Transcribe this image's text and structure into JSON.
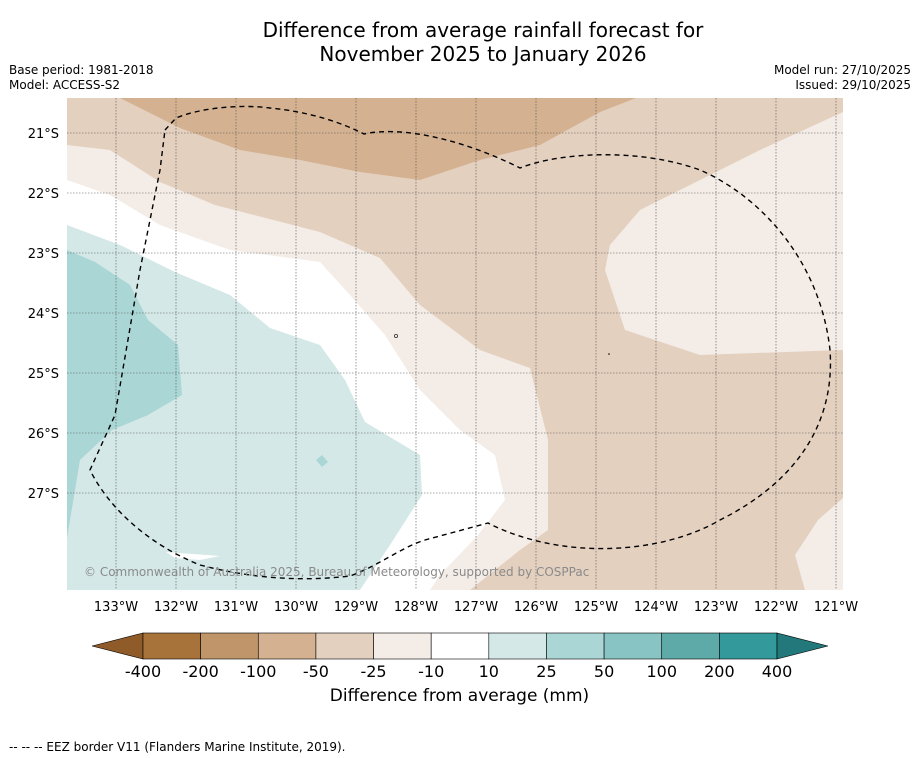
{
  "title": {
    "line1": "Difference from average rainfall forecast for",
    "line2": "November 2025 to January 2026"
  },
  "meta_left": {
    "base_period": "Base period: 1981-2018",
    "model": "Model: ACCESS-S2"
  },
  "meta_right": {
    "model_run": "Model run: 27/10/2025",
    "issued": "Issued: 29/10/2025"
  },
  "map": {
    "lat_labels": [
      "21°S",
      "22°S",
      "23°S",
      "24°S",
      "25°S",
      "26°S",
      "27°S"
    ],
    "lon_labels": [
      "133°W",
      "132°W",
      "131°W",
      "130°W",
      "129°W",
      "128°W",
      "127°W",
      "126°W",
      "125°W",
      "124°W",
      "123°W",
      "122°W",
      "121°W"
    ],
    "copyright": "© Commonwealth of Australia 2025, Bureau of Meteorology, supported by COSPPac"
  },
  "colorbar": {
    "tick_labels": [
      "-400",
      "-200",
      "-100",
      "-50",
      "-25",
      "-10",
      "10",
      "25",
      "50",
      "100",
      "200",
      "400"
    ],
    "colors": [
      "#a8733a",
      "#c0956a",
      "#d4b190",
      "#e3d0bf",
      "#f4ece6",
      "#ffffff",
      "#d4e8e7",
      "#aad6d5",
      "#87c4c3",
      "#5eaaa9",
      "#33999a"
    ],
    "under_color": "#8f5b28",
    "over_color": "#22787a",
    "label": "Difference from average (mm)"
  },
  "footnote": "-- -- -- EEZ border V11 (Flanders Marine Institute, 2019)."
}
